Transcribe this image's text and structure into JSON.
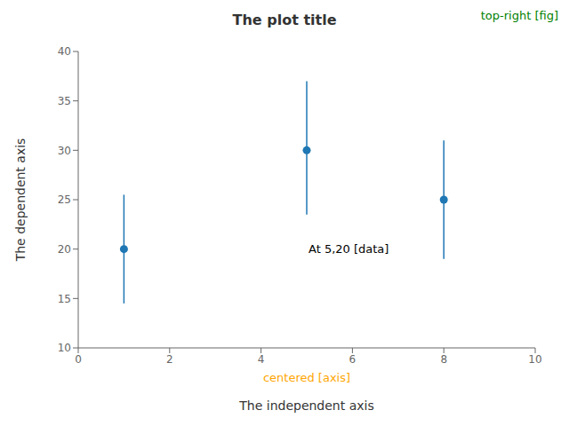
{
  "chart_data": {
    "type": "scatter",
    "title": "The plot title",
    "x_label": "The independent axis",
    "y_label": "The dependent axis",
    "x": [
      1,
      5,
      8
    ],
    "values": [
      20,
      30,
      25
    ],
    "error_lower": [
      5.5,
      6.5,
      6.0
    ],
    "error_upper": [
      5.5,
      7.0,
      6.0
    ],
    "color": "#1f77b4",
    "xlim": [
      0,
      10
    ],
    "xticks": [
      0,
      2,
      4,
      6,
      8,
      10
    ],
    "ylim": [
      10,
      40
    ],
    "yticks": [
      10,
      15,
      20,
      25,
      30,
      35,
      40
    ],
    "grid": false,
    "annotations": [
      {
        "text": "top-right [fig]",
        "color": "#008000"
      },
      {
        "text": "centered [axis]",
        "color": "#FFA500"
      },
      {
        "text": "At 5,20 [data]",
        "color": "#000000",
        "x": 5,
        "y": 20
      }
    ]
  }
}
